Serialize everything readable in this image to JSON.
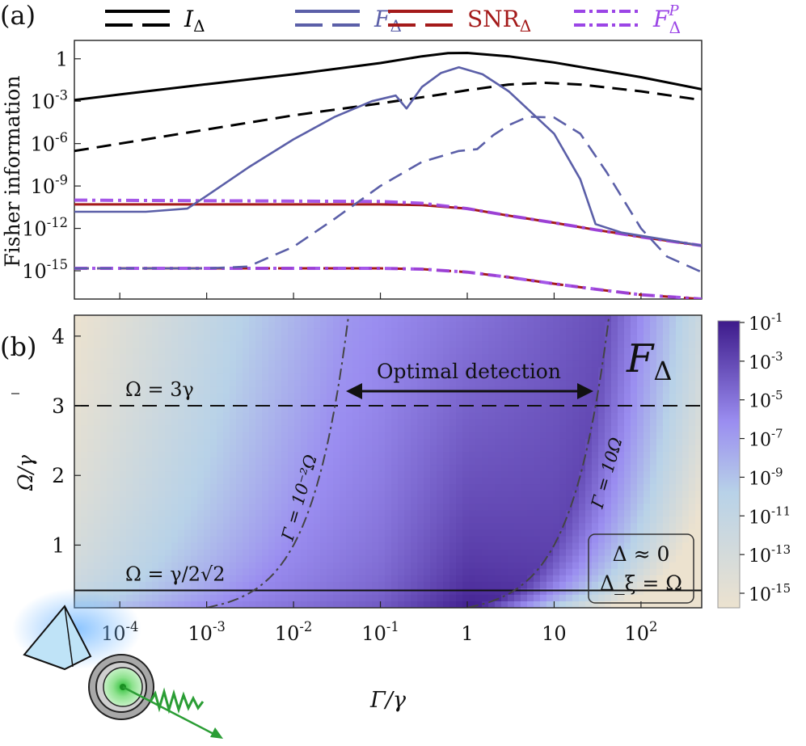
{
  "panel_labels": {
    "a": "(a)",
    "b": "(b)"
  },
  "colors": {
    "I": "#000000",
    "F": "#5b5fa8",
    "SNR": "#a41a1a",
    "FP": "#9b45e6",
    "cmap_low": "#ece2cf",
    "cmap_mid": "#b8d2e8",
    "cmap_high": "#3d1a8a"
  },
  "legend": [
    {
      "key": "I",
      "label": "I",
      "sub": "Δ"
    },
    {
      "key": "F",
      "label": "F",
      "sub": "Δ"
    },
    {
      "key": "SNR",
      "label": "SNR",
      "sub": "Δ"
    },
    {
      "key": "FP",
      "label": "F",
      "sub": "Δ",
      "sup": "P"
    }
  ],
  "chart_data": [
    {
      "id": "a",
      "type": "line",
      "ylabel": "Fisher information",
      "x_scale": "log",
      "y_scale": "log",
      "xlim": [
        3e-05,
        500
      ],
      "ylim": [
        1e-17,
        20
      ],
      "y_ticks": [
        {
          "value": 1,
          "label": "1"
        },
        {
          "value": 0.001,
          "label": "10",
          "sup": "-3"
        },
        {
          "value": 1e-06,
          "label": "10",
          "sup": "-6"
        },
        {
          "value": 1e-09,
          "label": "10",
          "sup": "-9"
        },
        {
          "value": 1e-12,
          "label": "10",
          "sup": "-12"
        },
        {
          "value": 1e-15,
          "label": "10",
          "sup": "-15"
        }
      ],
      "series": [
        {
          "key": "I",
          "style": "solid",
          "x": [
            3e-05,
            0.0001,
            0.001,
            0.01,
            0.1,
            0.3,
            0.6,
            1,
            3,
            10,
            100,
            500
          ],
          "y": [
            0.0012,
            0.003,
            0.016,
            0.08,
            0.5,
            1.5,
            2.5,
            2.6,
            1.5,
            0.55,
            0.05,
            0.007
          ]
        },
        {
          "key": "I",
          "style": "dashed",
          "x": [
            3e-05,
            0.0001,
            0.001,
            0.01,
            0.1,
            0.5,
            1,
            3,
            8,
            20,
            100,
            500
          ],
          "y": [
            3e-07,
            1e-06,
            1e-05,
            0.0001,
            0.0007,
            0.003,
            0.006,
            0.015,
            0.02,
            0.015,
            0.005,
            0.0012
          ]
        },
        {
          "key": "F",
          "style": "solid",
          "x": [
            3e-05,
            0.0002,
            0.0006,
            0.001,
            0.003,
            0.01,
            0.03,
            0.08,
            0.15,
            0.2,
            0.3,
            0.5,
            0.8,
            1.5,
            3,
            10,
            20,
            30,
            60,
            100,
            500
          ],
          "y": [
            1.5e-11,
            1.5e-11,
            2.5e-11,
            2e-10,
            2e-08,
            2e-06,
            8e-05,
            0.001,
            0.0025,
            0.0003,
            0.01,
            0.1,
            0.25,
            0.08,
            0.005,
            5e-06,
            3e-09,
            2e-12,
            5e-13,
            3e-13,
            6e-14
          ]
        },
        {
          "key": "F",
          "style": "dashed",
          "x": [
            3e-05,
            0.001,
            0.003,
            0.01,
            0.03,
            0.1,
            0.3,
            0.8,
            1.3,
            2,
            3,
            5,
            10,
            20,
            40,
            100,
            200,
            500
          ],
          "y": [
            1.5e-15,
            1.5e-15,
            2e-15,
            5e-14,
            5e-12,
            1e-09,
            5e-08,
            3e-07,
            4e-07,
            4e-06,
            2e-05,
            8e-05,
            7e-05,
            5e-06,
            1e-08,
            1e-12,
            1e-14,
            8e-16
          ]
        },
        {
          "key": "SNR",
          "style": "solid",
          "x": [
            3e-05,
            0.1,
            0.3,
            1,
            3,
            10,
            30,
            100,
            500
          ],
          "y": [
            5e-11,
            5e-11,
            4.5e-11,
            2.5e-11,
            8e-12,
            2.5e-12,
            8e-13,
            2.5e-13,
            6e-14
          ]
        },
        {
          "key": "SNR",
          "style": "dashed",
          "x": [
            3e-05,
            0.1,
            0.3,
            1,
            3,
            10,
            30,
            100,
            500
          ],
          "y": [
            1.5e-15,
            1.5e-15,
            1.3e-15,
            8e-16,
            3.5e-16,
            1.2e-16,
            5e-17,
            2e-17,
            1e-17
          ]
        },
        {
          "key": "FP",
          "style": "dashdot",
          "x": [
            3e-05,
            0.1,
            0.3,
            1,
            3,
            10,
            30,
            100,
            500
          ],
          "y": [
            1e-10,
            8e-11,
            6e-11,
            2.5e-11,
            8e-12,
            2.5e-12,
            8e-13,
            2.5e-13,
            6e-14
          ]
        },
        {
          "key": "FP",
          "style": "dashdot2",
          "x": [
            3e-05,
            0.1,
            0.3,
            1,
            3,
            10,
            30,
            100,
            500
          ],
          "y": [
            1.5e-15,
            1.5e-15,
            1.3e-15,
            8e-16,
            3.5e-16,
            1.2e-16,
            5e-17,
            2e-17,
            1e-17
          ]
        }
      ]
    },
    {
      "id": "b",
      "type": "heatmap",
      "title": "F",
      "title_sub": "Δ",
      "x_scale": "log",
      "xlim": [
        3e-05,
        500
      ],
      "ylim": [
        0.1,
        4.3
      ],
      "xlabel": "Γ/γ",
      "ylabel": "Ω/γ",
      "x_ticks": [
        {
          "value": 0.0001,
          "label": "10",
          "sup": "-4"
        },
        {
          "value": 0.001,
          "label": "10",
          "sup": "-3"
        },
        {
          "value": 0.01,
          "label": "10",
          "sup": "-2"
        },
        {
          "value": 0.1,
          "label": "10",
          "sup": "-1"
        },
        {
          "value": 1,
          "label": "1"
        },
        {
          "value": 10,
          "label": "10"
        },
        {
          "value": 100,
          "label": "10",
          "sup": "2"
        }
      ],
      "y_ticks": [
        1,
        2,
        3,
        4
      ],
      "colorbar": {
        "ticks": [
          {
            "label": "10",
            "sup": "-1"
          },
          {
            "label": "10",
            "sup": "-3"
          },
          {
            "label": "10",
            "sup": "-5"
          },
          {
            "label": "10",
            "sup": "-7"
          },
          {
            "label": "10",
            "sup": "-9"
          },
          {
            "label": "10",
            "sup": "-11"
          },
          {
            "label": "10",
            "sup": "-13"
          },
          {
            "label": "10",
            "sup": "-15"
          }
        ]
      },
      "hlines": [
        {
          "y": 3,
          "style": "dashed",
          "label": "Ω = 3γ"
        },
        {
          "y": 0.35,
          "style": "solid",
          "label": "Ω = γ/2√2"
        }
      ],
      "curves": [
        {
          "label": "Γ = 10⁻²Ω",
          "factor": 0.01
        },
        {
          "label": "Γ = 10Ω",
          "factor": 10
        }
      ],
      "annotation": "Optimal detection",
      "infobox": [
        "Δ ≈ 0",
        "Δ_ξ = Ω"
      ]
    }
  ]
}
